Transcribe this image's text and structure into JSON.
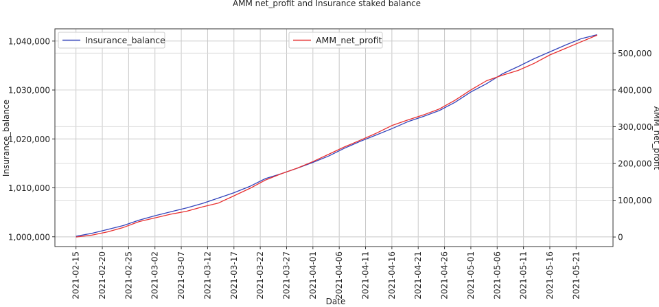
{
  "chart_data": {
    "type": "line",
    "title": "AMM net_profit and Insurance staked balance",
    "xlabel": "Date",
    "ylabel_left": "Insurance_balance",
    "ylabel_right": "AMM_net_profit",
    "x_ticks": [
      "2021-02-15",
      "2021-02-20",
      "2021-02-25",
      "2021-03-02",
      "2021-03-07",
      "2021-03-12",
      "2021-03-17",
      "2021-03-22",
      "2021-03-27",
      "2021-04-01",
      "2021-04-06",
      "2021-04-11",
      "2021-04-16",
      "2021-04-21",
      "2021-04-26",
      "2021-05-01",
      "2021-05-06",
      "2021-05-11",
      "2021-05-16",
      "2021-05-21"
    ],
    "y_left_ticks": [
      "1,000,000",
      "1,010,000",
      "1,020,000",
      "1,030,000",
      "1,040,000"
    ],
    "y_left_tick_values": [
      1000000,
      1010000,
      1020000,
      1030000,
      1040000
    ],
    "y_right_ticks": [
      "0",
      "100,000",
      "200,000",
      "300,000",
      "400,000",
      "500,000"
    ],
    "y_right_tick_values": [
      0,
      100000,
      200000,
      300000,
      400000,
      500000
    ],
    "ylim_left": [
      998000,
      1042500
    ],
    "ylim_right": [
      -26000,
      566000
    ],
    "x_range": [
      "2021-02-11",
      "2021-05-28"
    ],
    "grid": true,
    "legend": [
      {
        "name": "Insurance_balance",
        "color": "#3344bb",
        "placement": "top-left"
      },
      {
        "name": "AMM_net_profit",
        "color": "#e83030",
        "placement": "top-center"
      }
    ],
    "series": [
      {
        "name": "Insurance_balance",
        "axis": "left",
        "color": "#3344bb",
        "points": [
          [
            "2021-02-15",
            1000100
          ],
          [
            "2021-02-18",
            1000700
          ],
          [
            "2021-02-21",
            1001500
          ],
          [
            "2021-02-24",
            1002300
          ],
          [
            "2021-02-27",
            1003400
          ],
          [
            "2021-03-02",
            1004300
          ],
          [
            "2021-03-05",
            1005100
          ],
          [
            "2021-03-08",
            1005900
          ],
          [
            "2021-03-11",
            1006800
          ],
          [
            "2021-03-14",
            1007900
          ],
          [
            "2021-03-17",
            1009000
          ],
          [
            "2021-03-20",
            1010300
          ],
          [
            "2021-03-23",
            1011900
          ],
          [
            "2021-03-26",
            1012900
          ],
          [
            "2021-03-29",
            1014000
          ],
          [
            "2021-04-01",
            1015200
          ],
          [
            "2021-04-04",
            1016500
          ],
          [
            "2021-04-07",
            1018100
          ],
          [
            "2021-04-10",
            1019500
          ],
          [
            "2021-04-13",
            1020800
          ],
          [
            "2021-04-16",
            1022100
          ],
          [
            "2021-04-19",
            1023500
          ],
          [
            "2021-04-22",
            1024600
          ],
          [
            "2021-04-25",
            1025800
          ],
          [
            "2021-04-28",
            1027500
          ],
          [
            "2021-05-01",
            1029600
          ],
          [
            "2021-05-04",
            1031300
          ],
          [
            "2021-05-07",
            1033300
          ],
          [
            "2021-05-10",
            1034800
          ],
          [
            "2021-05-13",
            1036400
          ],
          [
            "2021-05-16",
            1037800
          ],
          [
            "2021-05-19",
            1039200
          ],
          [
            "2021-05-22",
            1040500
          ],
          [
            "2021-05-25",
            1041300
          ]
        ]
      },
      {
        "name": "AMM_net_profit",
        "axis": "right",
        "color": "#e83030",
        "points": [
          [
            "2021-02-15",
            0
          ],
          [
            "2021-02-18",
            5000
          ],
          [
            "2021-02-21",
            14000
          ],
          [
            "2021-02-24",
            26000
          ],
          [
            "2021-02-27",
            42000
          ],
          [
            "2021-03-02",
            52000
          ],
          [
            "2021-03-05",
            62000
          ],
          [
            "2021-03-08",
            70000
          ],
          [
            "2021-03-11",
            82000
          ],
          [
            "2021-03-14",
            92000
          ],
          [
            "2021-03-17",
            112000
          ],
          [
            "2021-03-20",
            132000
          ],
          [
            "2021-03-23",
            155000
          ],
          [
            "2021-03-26",
            172000
          ],
          [
            "2021-03-29",
            187000
          ],
          [
            "2021-04-01",
            205000
          ],
          [
            "2021-04-04",
            225000
          ],
          [
            "2021-04-07",
            245000
          ],
          [
            "2021-04-10",
            263000
          ],
          [
            "2021-04-13",
            282000
          ],
          [
            "2021-04-16",
            303000
          ],
          [
            "2021-04-19",
            318000
          ],
          [
            "2021-04-22",
            332000
          ],
          [
            "2021-04-25",
            348000
          ],
          [
            "2021-04-28",
            372000
          ],
          [
            "2021-05-01",
            400000
          ],
          [
            "2021-05-04",
            425000
          ],
          [
            "2021-05-07",
            440000
          ],
          [
            "2021-05-10",
            453000
          ],
          [
            "2021-05-13",
            472000
          ],
          [
            "2021-05-16",
            495000
          ],
          [
            "2021-05-19",
            513000
          ],
          [
            "2021-05-22",
            531000
          ],
          [
            "2021-05-25",
            549000
          ]
        ]
      }
    ]
  }
}
